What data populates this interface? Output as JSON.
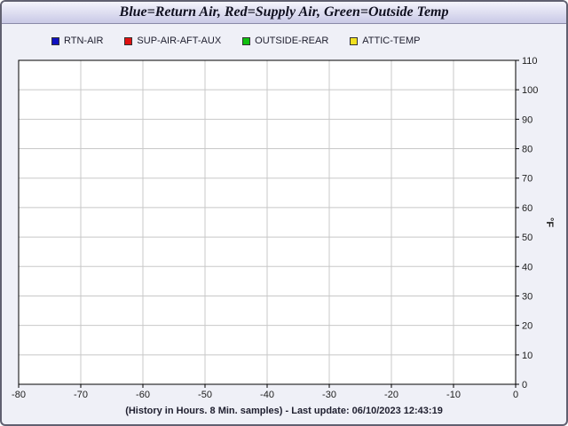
{
  "chart_data": {
    "type": "line",
    "title": "Blue=Return Air, Red=Supply Air, Green=Outside Temp",
    "xlabel": "(History in Hours. 8 Min. samples) - Last update: 06/10/2023 12:43:19",
    "ylabel": "°F",
    "xlim": [
      -80,
      0
    ],
    "ylim": [
      0,
      110
    ],
    "x_ticks": [
      "-80",
      "-70",
      "-60",
      "-50",
      "-40",
      "-30",
      "-20",
      "-10",
      "0"
    ],
    "y_ticks": [
      "0",
      "10",
      "20",
      "30",
      "40",
      "50",
      "60",
      "70",
      "80",
      "90",
      "100",
      "110"
    ],
    "grid": true,
    "legend_position": "top",
    "series": [
      {
        "name": "RTN-AIR",
        "color": "#1010c0",
        "values": []
      },
      {
        "name": "SUP-AIR-AFT-AUX",
        "color": "#e01010",
        "values": []
      },
      {
        "name": "OUTSIDE-REAR",
        "color": "#10c010",
        "values": []
      },
      {
        "name": "ATTIC-TEMP",
        "color": "#f0e020",
        "values": []
      }
    ]
  }
}
